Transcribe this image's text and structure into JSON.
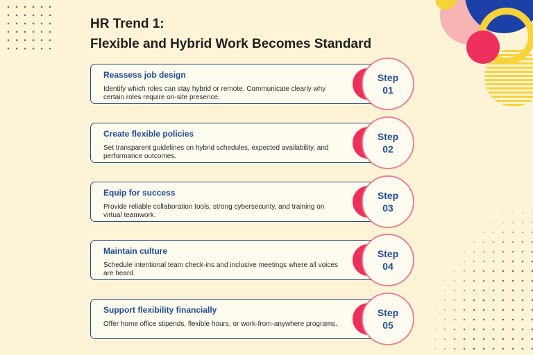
{
  "title": {
    "line1": "HR Trend 1:",
    "line2": "Flexible and Hybrid Work Becomes Standard"
  },
  "steps": [
    {
      "title": "Reassess job design",
      "description": "Identify which roles can stay hybrid or remote. Communicate clearly why certain roles require on-site presence.",
      "step_label": "Step",
      "number": "01"
    },
    {
      "title": "Create flexible policies",
      "description": "Set transparent guidelines on hybrid schedules, expected availability, and performance outcomes.",
      "step_label": "Step",
      "number": "02"
    },
    {
      "title": "Equip for success",
      "description": "Provide reliable collaboration tools, strong cybersecurity, and training on virtual teamwork.",
      "step_label": "Step",
      "number": "03"
    },
    {
      "title": "Maintain culture",
      "description": "Schedule intentional team check-ins and inclusive meetings where all voices are heard.",
      "step_label": "Step",
      "number": "04"
    },
    {
      "title": "Support flexibility financially",
      "description": "Offer home office stipends, flexible hours, or work-from-anywhere programs.",
      "step_label": "Step",
      "number": "05"
    }
  ],
  "colors": {
    "background": "#fdf3d6",
    "accent_blue": "#1e4b94",
    "accent_pink": "#ee2f5d",
    "accent_yellow": "#f7d33a",
    "card_border": "#2d4a78"
  }
}
